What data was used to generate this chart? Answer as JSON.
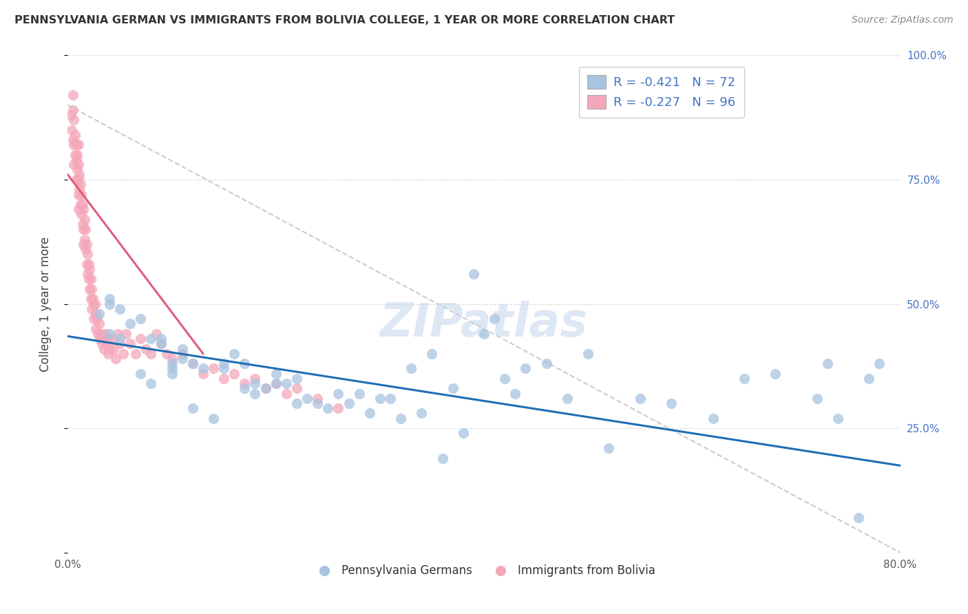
{
  "title": "PENNSYLVANIA GERMAN VS IMMIGRANTS FROM BOLIVIA COLLEGE, 1 YEAR OR MORE CORRELATION CHART",
  "source": "Source: ZipAtlas.com",
  "ylabel": "College, 1 year or more",
  "xlim": [
    0.0,
    0.8
  ],
  "ylim": [
    0.0,
    1.0
  ],
  "xticks": [
    0.0,
    0.1,
    0.2,
    0.3,
    0.4,
    0.5,
    0.6,
    0.7,
    0.8
  ],
  "yticks_right": [
    0.25,
    0.5,
    0.75,
    1.0
  ],
  "yticklabels_right": [
    "25.0%",
    "50.0%",
    "75.0%",
    "100.0%"
  ],
  "blue_color": "#a8c4e0",
  "pink_color": "#f4a7b9",
  "blue_line_color": "#1f6eb5",
  "pink_line_color": "#e05c7a",
  "legend_blue_label": "R = -0.421   N = 72",
  "legend_pink_label": "R = -0.227   N = 96",
  "watermark": "ZIPatlas",
  "scatter_blue_x": [
    0.03,
    0.04,
    0.04,
    0.04,
    0.05,
    0.05,
    0.06,
    0.07,
    0.07,
    0.08,
    0.08,
    0.09,
    0.09,
    0.1,
    0.1,
    0.1,
    0.11,
    0.11,
    0.12,
    0.12,
    0.13,
    0.14,
    0.15,
    0.15,
    0.16,
    0.17,
    0.17,
    0.18,
    0.18,
    0.19,
    0.2,
    0.2,
    0.21,
    0.22,
    0.22,
    0.23,
    0.24,
    0.25,
    0.26,
    0.27,
    0.28,
    0.29,
    0.3,
    0.31,
    0.32,
    0.33,
    0.34,
    0.35,
    0.36,
    0.37,
    0.38,
    0.39,
    0.4,
    0.41,
    0.42,
    0.43,
    0.44,
    0.46,
    0.48,
    0.5,
    0.52,
    0.55,
    0.58,
    0.62,
    0.65,
    0.68,
    0.72,
    0.73,
    0.74,
    0.76,
    0.77,
    0.78
  ],
  "scatter_blue_y": [
    0.48,
    0.5,
    0.51,
    0.44,
    0.49,
    0.43,
    0.46,
    0.47,
    0.36,
    0.43,
    0.34,
    0.43,
    0.42,
    0.38,
    0.37,
    0.36,
    0.39,
    0.41,
    0.38,
    0.29,
    0.37,
    0.27,
    0.38,
    0.37,
    0.4,
    0.33,
    0.38,
    0.32,
    0.34,
    0.33,
    0.36,
    0.34,
    0.34,
    0.35,
    0.3,
    0.31,
    0.3,
    0.29,
    0.32,
    0.3,
    0.32,
    0.28,
    0.31,
    0.31,
    0.27,
    0.37,
    0.28,
    0.4,
    0.19,
    0.33,
    0.24,
    0.56,
    0.44,
    0.47,
    0.35,
    0.32,
    0.37,
    0.38,
    0.31,
    0.4,
    0.21,
    0.31,
    0.3,
    0.27,
    0.35,
    0.36,
    0.31,
    0.38,
    0.27,
    0.07,
    0.35,
    0.38
  ],
  "scatter_pink_x": [
    0.003,
    0.004,
    0.005,
    0.005,
    0.005,
    0.006,
    0.006,
    0.006,
    0.007,
    0.007,
    0.008,
    0.008,
    0.008,
    0.009,
    0.009,
    0.01,
    0.01,
    0.01,
    0.01,
    0.01,
    0.011,
    0.011,
    0.012,
    0.012,
    0.013,
    0.013,
    0.014,
    0.014,
    0.015,
    0.015,
    0.015,
    0.016,
    0.016,
    0.017,
    0.017,
    0.018,
    0.018,
    0.019,
    0.019,
    0.02,
    0.02,
    0.021,
    0.021,
    0.022,
    0.022,
    0.023,
    0.023,
    0.024,
    0.025,
    0.025,
    0.026,
    0.027,
    0.027,
    0.028,
    0.029,
    0.03,
    0.031,
    0.032,
    0.033,
    0.034,
    0.035,
    0.036,
    0.037,
    0.038,
    0.039,
    0.04,
    0.042,
    0.044,
    0.046,
    0.048,
    0.05,
    0.053,
    0.056,
    0.06,
    0.065,
    0.07,
    0.075,
    0.08,
    0.085,
    0.09,
    0.095,
    0.1,
    0.11,
    0.12,
    0.13,
    0.14,
    0.15,
    0.16,
    0.17,
    0.18,
    0.19,
    0.2,
    0.21,
    0.22,
    0.24,
    0.26
  ],
  "scatter_pink_y": [
    0.88,
    0.85,
    0.92,
    0.89,
    0.83,
    0.87,
    0.82,
    0.78,
    0.84,
    0.8,
    0.82,
    0.79,
    0.75,
    0.8,
    0.77,
    0.82,
    0.78,
    0.75,
    0.72,
    0.69,
    0.76,
    0.73,
    0.74,
    0.7,
    0.72,
    0.68,
    0.7,
    0.66,
    0.69,
    0.65,
    0.62,
    0.67,
    0.63,
    0.65,
    0.61,
    0.62,
    0.58,
    0.6,
    0.56,
    0.58,
    0.55,
    0.57,
    0.53,
    0.55,
    0.51,
    0.53,
    0.49,
    0.51,
    0.5,
    0.47,
    0.5,
    0.48,
    0.45,
    0.47,
    0.44,
    0.46,
    0.43,
    0.44,
    0.42,
    0.43,
    0.41,
    0.44,
    0.42,
    0.43,
    0.4,
    0.41,
    0.43,
    0.41,
    0.39,
    0.44,
    0.42,
    0.4,
    0.44,
    0.42,
    0.4,
    0.43,
    0.41,
    0.4,
    0.44,
    0.42,
    0.4,
    0.39,
    0.4,
    0.38,
    0.36,
    0.37,
    0.35,
    0.36,
    0.34,
    0.35,
    0.33,
    0.34,
    0.32,
    0.33,
    0.31,
    0.29
  ],
  "blue_trend_x": [
    0.0,
    0.8
  ],
  "blue_trend_y": [
    0.435,
    0.175
  ],
  "pink_trend_x": [
    0.0,
    0.13
  ],
  "pink_trend_y": [
    0.76,
    0.4
  ],
  "dash_line_x": [
    0.0,
    0.8
  ],
  "dash_line_y": [
    0.9,
    0.0
  ],
  "grid_color": "#dddddd",
  "background_color": "#ffffff",
  "bottom_legend_blue": "Pennsylvania Germans",
  "bottom_legend_pink": "Immigrants from Bolivia",
  "legend_text_color": "#4472c4",
  "label_color": "#555555"
}
